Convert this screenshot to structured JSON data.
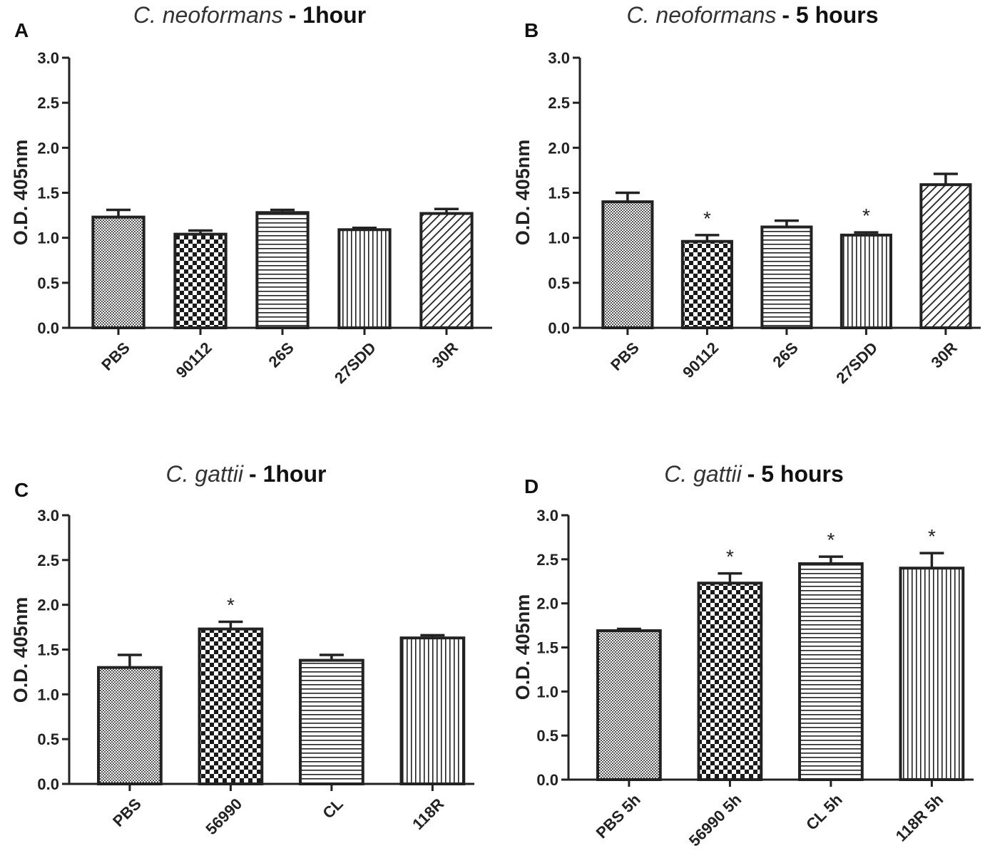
{
  "chart_data": [
    {
      "panel": "A",
      "type": "bar",
      "title_italic": "C. neoformans",
      "title_bold": "- 1hour",
      "ylabel": "O.D. 405nm",
      "xlabel": "",
      "ylim": [
        0,
        3.0
      ],
      "yticks": [
        "0.0",
        "0.5",
        "1.0",
        "1.5",
        "2.0",
        "2.5",
        "3.0"
      ],
      "categories": [
        "PBS",
        "90112",
        "26S",
        "27SDD",
        "30R"
      ],
      "values": [
        1.23,
        1.04,
        1.28,
        1.09,
        1.27
      ],
      "errors": [
        0.08,
        0.04,
        0.03,
        0.02,
        0.05
      ],
      "patterns": [
        "fine",
        "checker",
        "hlines",
        "vlines",
        "diag"
      ],
      "significance": [
        "",
        "",
        "",
        "",
        ""
      ]
    },
    {
      "panel": "B",
      "type": "bar",
      "title_italic": "C. neoformans",
      "title_bold": "- 5 hours",
      "ylabel": "O.D. 405nm",
      "xlabel": "",
      "ylim": [
        0,
        3.0
      ],
      "yticks": [
        "0.0",
        "0.5",
        "1.0",
        "1.5",
        "2.0",
        "2.5",
        "3.0"
      ],
      "categories": [
        "PBS",
        "90112",
        "26S",
        "27SDD",
        "30R"
      ],
      "values": [
        1.4,
        0.96,
        1.12,
        1.03,
        1.59
      ],
      "errors": [
        0.1,
        0.07,
        0.07,
        0.03,
        0.12
      ],
      "patterns": [
        "fine",
        "checker",
        "hlines",
        "vlines",
        "diag"
      ],
      "significance": [
        "",
        "*",
        "",
        "*",
        ""
      ]
    },
    {
      "panel": "C",
      "type": "bar",
      "title_italic": "C. gattii",
      "title_bold": "- 1hour",
      "ylabel": "O.D. 405nm",
      "xlabel": "",
      "ylim": [
        0,
        3.0
      ],
      "yticks": [
        "0.0",
        "0.5",
        "1.0",
        "1.5",
        "2.0",
        "2.5",
        "3.0"
      ],
      "categories": [
        "PBS",
        "56990",
        "CL",
        "118R"
      ],
      "values": [
        1.3,
        1.73,
        1.38,
        1.63
      ],
      "errors": [
        0.14,
        0.08,
        0.06,
        0.03
      ],
      "patterns": [
        "fine",
        "checker",
        "hlines",
        "vlines"
      ],
      "significance": [
        "",
        "*",
        "",
        ""
      ]
    },
    {
      "panel": "D",
      "type": "bar",
      "title_italic": "C. gattii",
      "title_bold": "- 5 hours",
      "ylabel": "O.D. 405nm",
      "xlabel": "",
      "ylim": [
        0,
        3.0
      ],
      "yticks": [
        "0.0",
        "0.5",
        "1.0",
        "1.5",
        "2.0",
        "2.5",
        "3.0"
      ],
      "categories": [
        "PBS 5h",
        "56990 5h",
        "CL 5h",
        "118R 5h"
      ],
      "values": [
        1.69,
        2.23,
        2.45,
        2.4
      ],
      "errors": [
        0.02,
        0.11,
        0.08,
        0.17
      ],
      "patterns": [
        "fine",
        "checker",
        "hlines",
        "vlines"
      ],
      "significance": [
        "",
        "*",
        "*",
        "*"
      ]
    }
  ]
}
